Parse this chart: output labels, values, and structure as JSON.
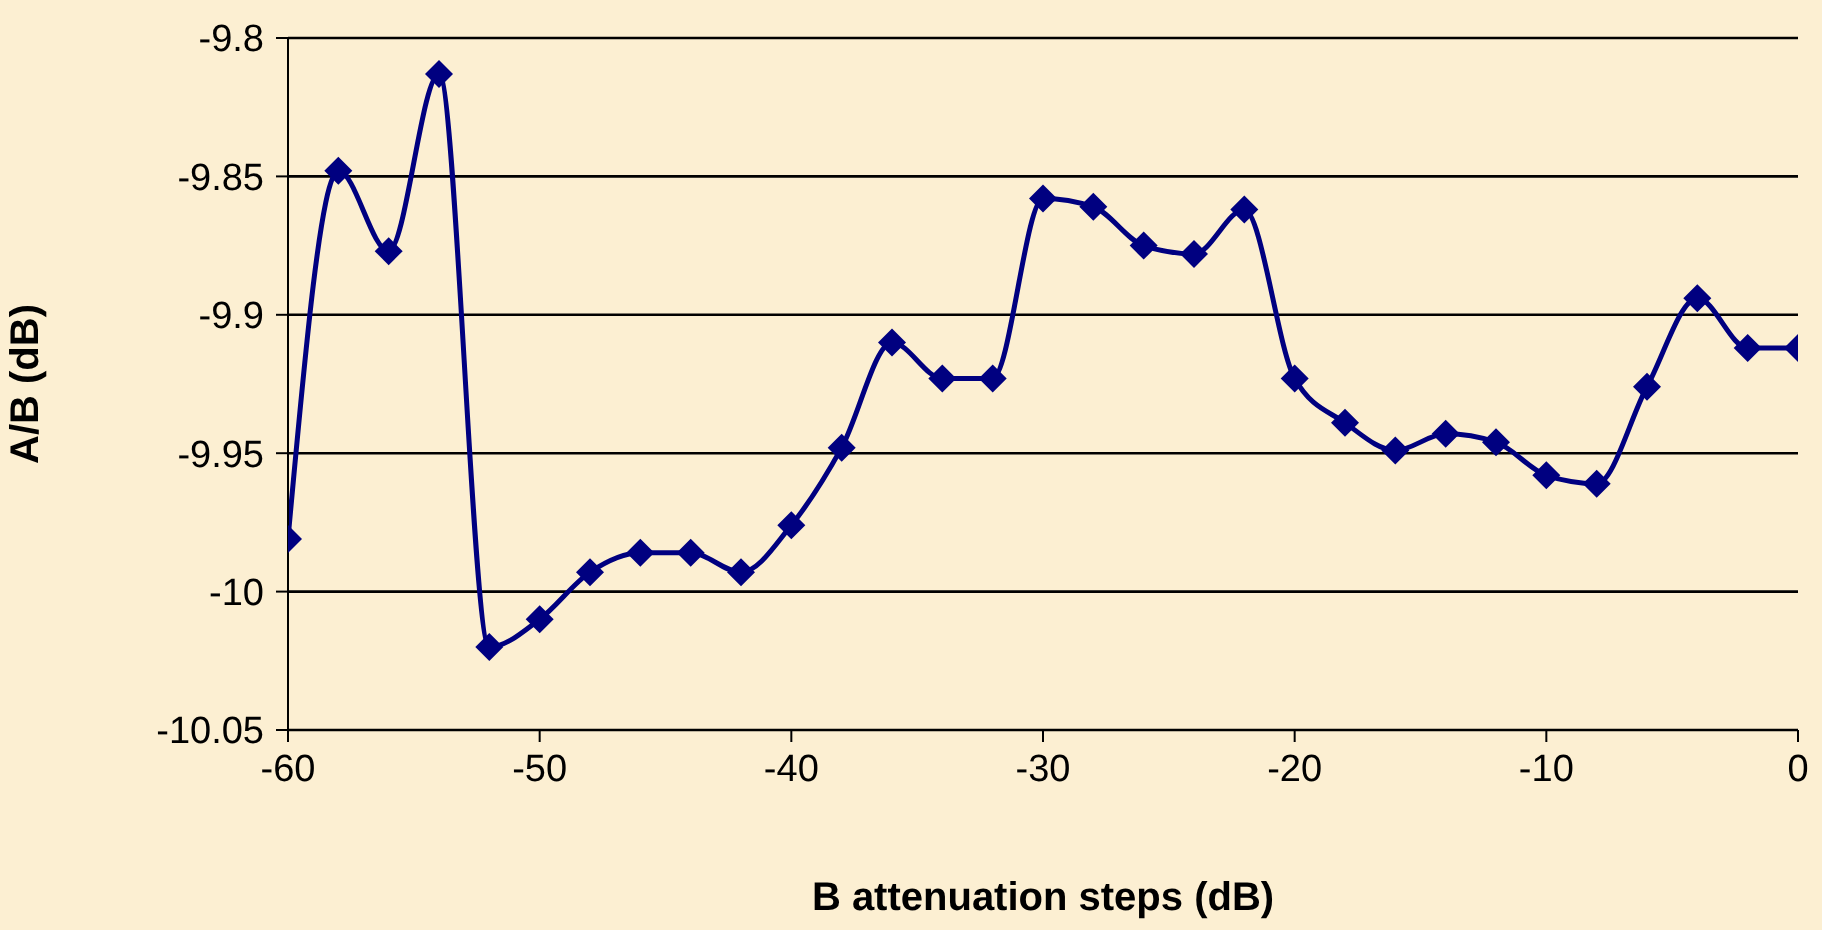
{
  "chart_data": {
    "type": "line",
    "xlabel": "B attenuation steps (dB)",
    "ylabel": "A/B (dB)",
    "x": [
      -60,
      -58,
      -56,
      -54,
      -52,
      -50,
      -48,
      -46,
      -44,
      -42,
      -40,
      -38,
      -36,
      -34,
      -32,
      -30,
      -28,
      -26,
      -24,
      -22,
      -20,
      -18,
      -16,
      -14,
      -12,
      -10,
      -8,
      -6,
      -4,
      -2,
      0
    ],
    "series": [
      {
        "color": "#000080",
        "values": [
          -9.981,
          -9.848,
          -9.877,
          -9.813,
          -10.02,
          -10.01,
          -9.993,
          -9.986,
          -9.986,
          -9.993,
          -9.976,
          -9.948,
          -9.91,
          -9.923,
          -9.923,
          -9.858,
          -9.861,
          -9.875,
          -9.878,
          -9.862,
          -9.923,
          -9.939,
          -9.949,
          -9.943,
          -9.946,
          -9.958,
          -9.961,
          -9.926,
          -9.894,
          -9.912,
          -9.912
        ]
      }
    ],
    "xlim": [
      -60,
      0
    ],
    "xticks": [
      -60,
      -50,
      -40,
      -30,
      -20,
      -10,
      0
    ],
    "ylim": [
      -10.05,
      -9.8
    ],
    "yticks": [
      -10.05,
      -10,
      -9.95,
      -9.9,
      -9.85,
      -9.8
    ],
    "grid": "y",
    "legend": false,
    "marker": "diamond",
    "line_style": "solid"
  }
}
